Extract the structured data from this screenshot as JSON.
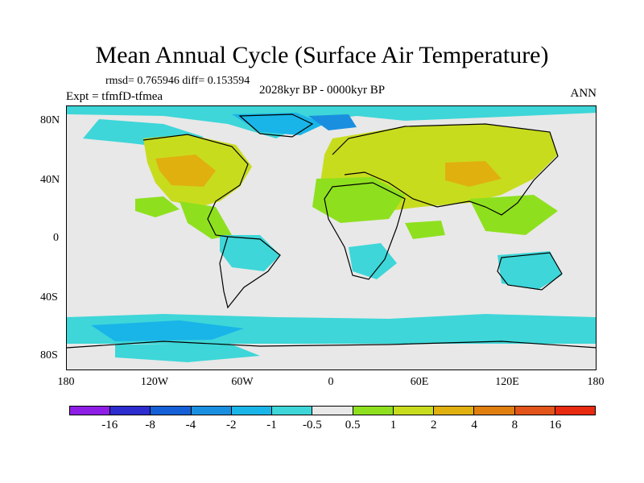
{
  "figure": {
    "title": "Mean Annual Cycle (Surface Air Temperature)",
    "stats": "rmsd= 0.765946 diff= 0.153594",
    "experiment": "Expt = tfmfD-tfmea",
    "period": "2028kyr BP - 0000kyr BP",
    "season": "ANN"
  },
  "axes": {
    "y_labels": [
      "80N",
      "40N",
      "0",
      "40S",
      "80S"
    ],
    "x_labels": [
      "180",
      "120W",
      "60W",
      "0",
      "60E",
      "120E",
      "180"
    ]
  },
  "colorbar": {
    "labels": [
      "-16",
      "-8",
      "-4",
      "-2",
      "-1",
      "-0.5",
      "0.5",
      "1",
      "2",
      "4",
      "8",
      "16"
    ],
    "colors": [
      "#8e1ee6",
      "#2d2ccf",
      "#1560d6",
      "#1a8fe0",
      "#19b5e8",
      "#3ed6d8",
      "#e8e8e8",
      "#8ee01e",
      "#c8dc1e",
      "#e0b00f",
      "#e07f10",
      "#e3541a",
      "#e82a10"
    ]
  }
}
